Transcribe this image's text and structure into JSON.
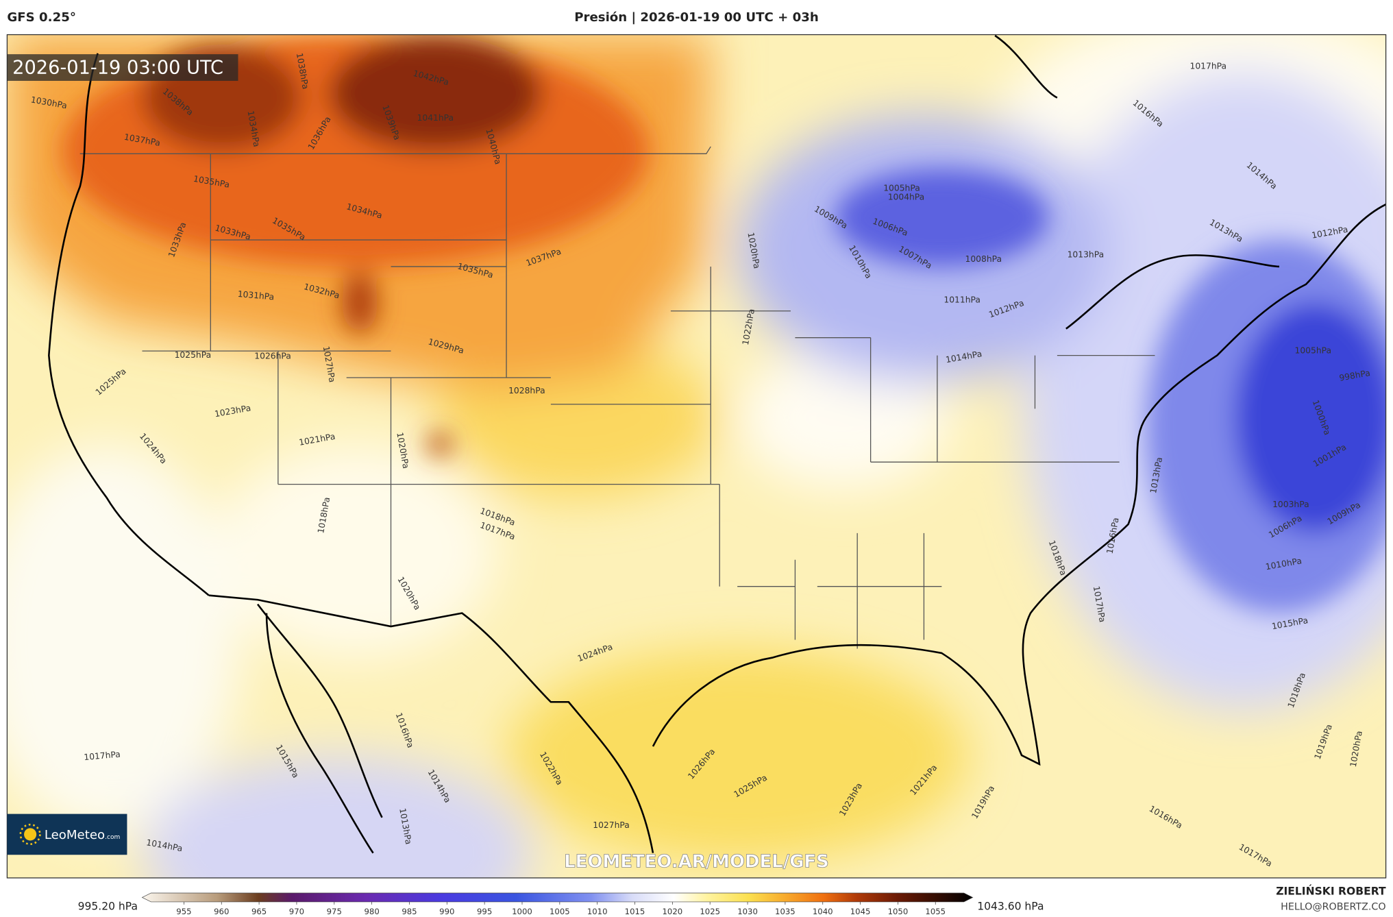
{
  "header": {
    "model": "GFS 0.25°",
    "title": "Presión | 2026-01-19 00 UTC + 03h"
  },
  "map": {
    "timestamp": "2026-01-19 03:00 UTC",
    "watermark": "LEOMETEO.AR/MODEL/GFS",
    "logo": "LeoMeteo",
    "logo_suffix": ".com",
    "isobar_labels": [
      "1042hPa",
      "1041hPa",
      "1040hPa",
      "1039hPa",
      "1038hPa",
      "1034hPa",
      "1036hPa",
      "1037hPa",
      "1038hPa",
      "1030hPa",
      "1035hPa",
      "1034hPa",
      "1033hPa",
      "1033hPa",
      "1035hPa",
      "1032hPa",
      "1031hPa",
      "1035hPa",
      "1037hPa",
      "1029hPa",
      "1028hPa",
      "1027hPa",
      "1025hPa",
      "1026hPa",
      "1025hPa",
      "1023hPa",
      "1021hPa",
      "1024hPa",
      "1020hPa",
      "1018hPa",
      "1018hPa",
      "1017hPa",
      "1020hPa",
      "1020hPa",
      "1022hPa",
      "1009hPa",
      "1005hPa",
      "1004hPa",
      "1006hPa",
      "1010hPa",
      "1007hPa",
      "1008hPa",
      "1011hPa",
      "1012hPa",
      "1013hPa",
      "1014hPa",
      "1016hPa",
      "1017hPa",
      "1014hPa",
      "1013hPa",
      "1012hPa",
      "1005hPa",
      "998hPa",
      "1000hPa",
      "1001hPa",
      "1003hPa",
      "1006hPa",
      "1009hPa",
      "1010hPa",
      "1015hPa",
      "1013hPa",
      "1016hPa",
      "1018hPa",
      "1017hPa",
      "1018hPa",
      "1019hPa",
      "1020hPa",
      "1017hPa",
      "1015hPa",
      "1016hPa",
      "1014hPa",
      "1013hPa",
      "1014hPa",
      "1024hPa",
      "1026hPa",
      "1025hPa",
      "1023hPa",
      "1021hPa",
      "1019hPa",
      "1022hPa",
      "1027hPa",
      "1016hPa",
      "1017hPa"
    ]
  },
  "colorbar": {
    "min_label": "995.20 hPa",
    "max_label": "1043.60 hPa",
    "ticks": [
      955,
      960,
      965,
      970,
      975,
      980,
      985,
      990,
      995,
      1000,
      1005,
      1010,
      1015,
      1020,
      1025,
      1030,
      1035,
      1040,
      1045,
      1050,
      1055
    ]
  },
  "credits": {
    "name": "ZIELIŃSKI ROBERT",
    "email": "HELLO@ROBERTZ.CO"
  }
}
